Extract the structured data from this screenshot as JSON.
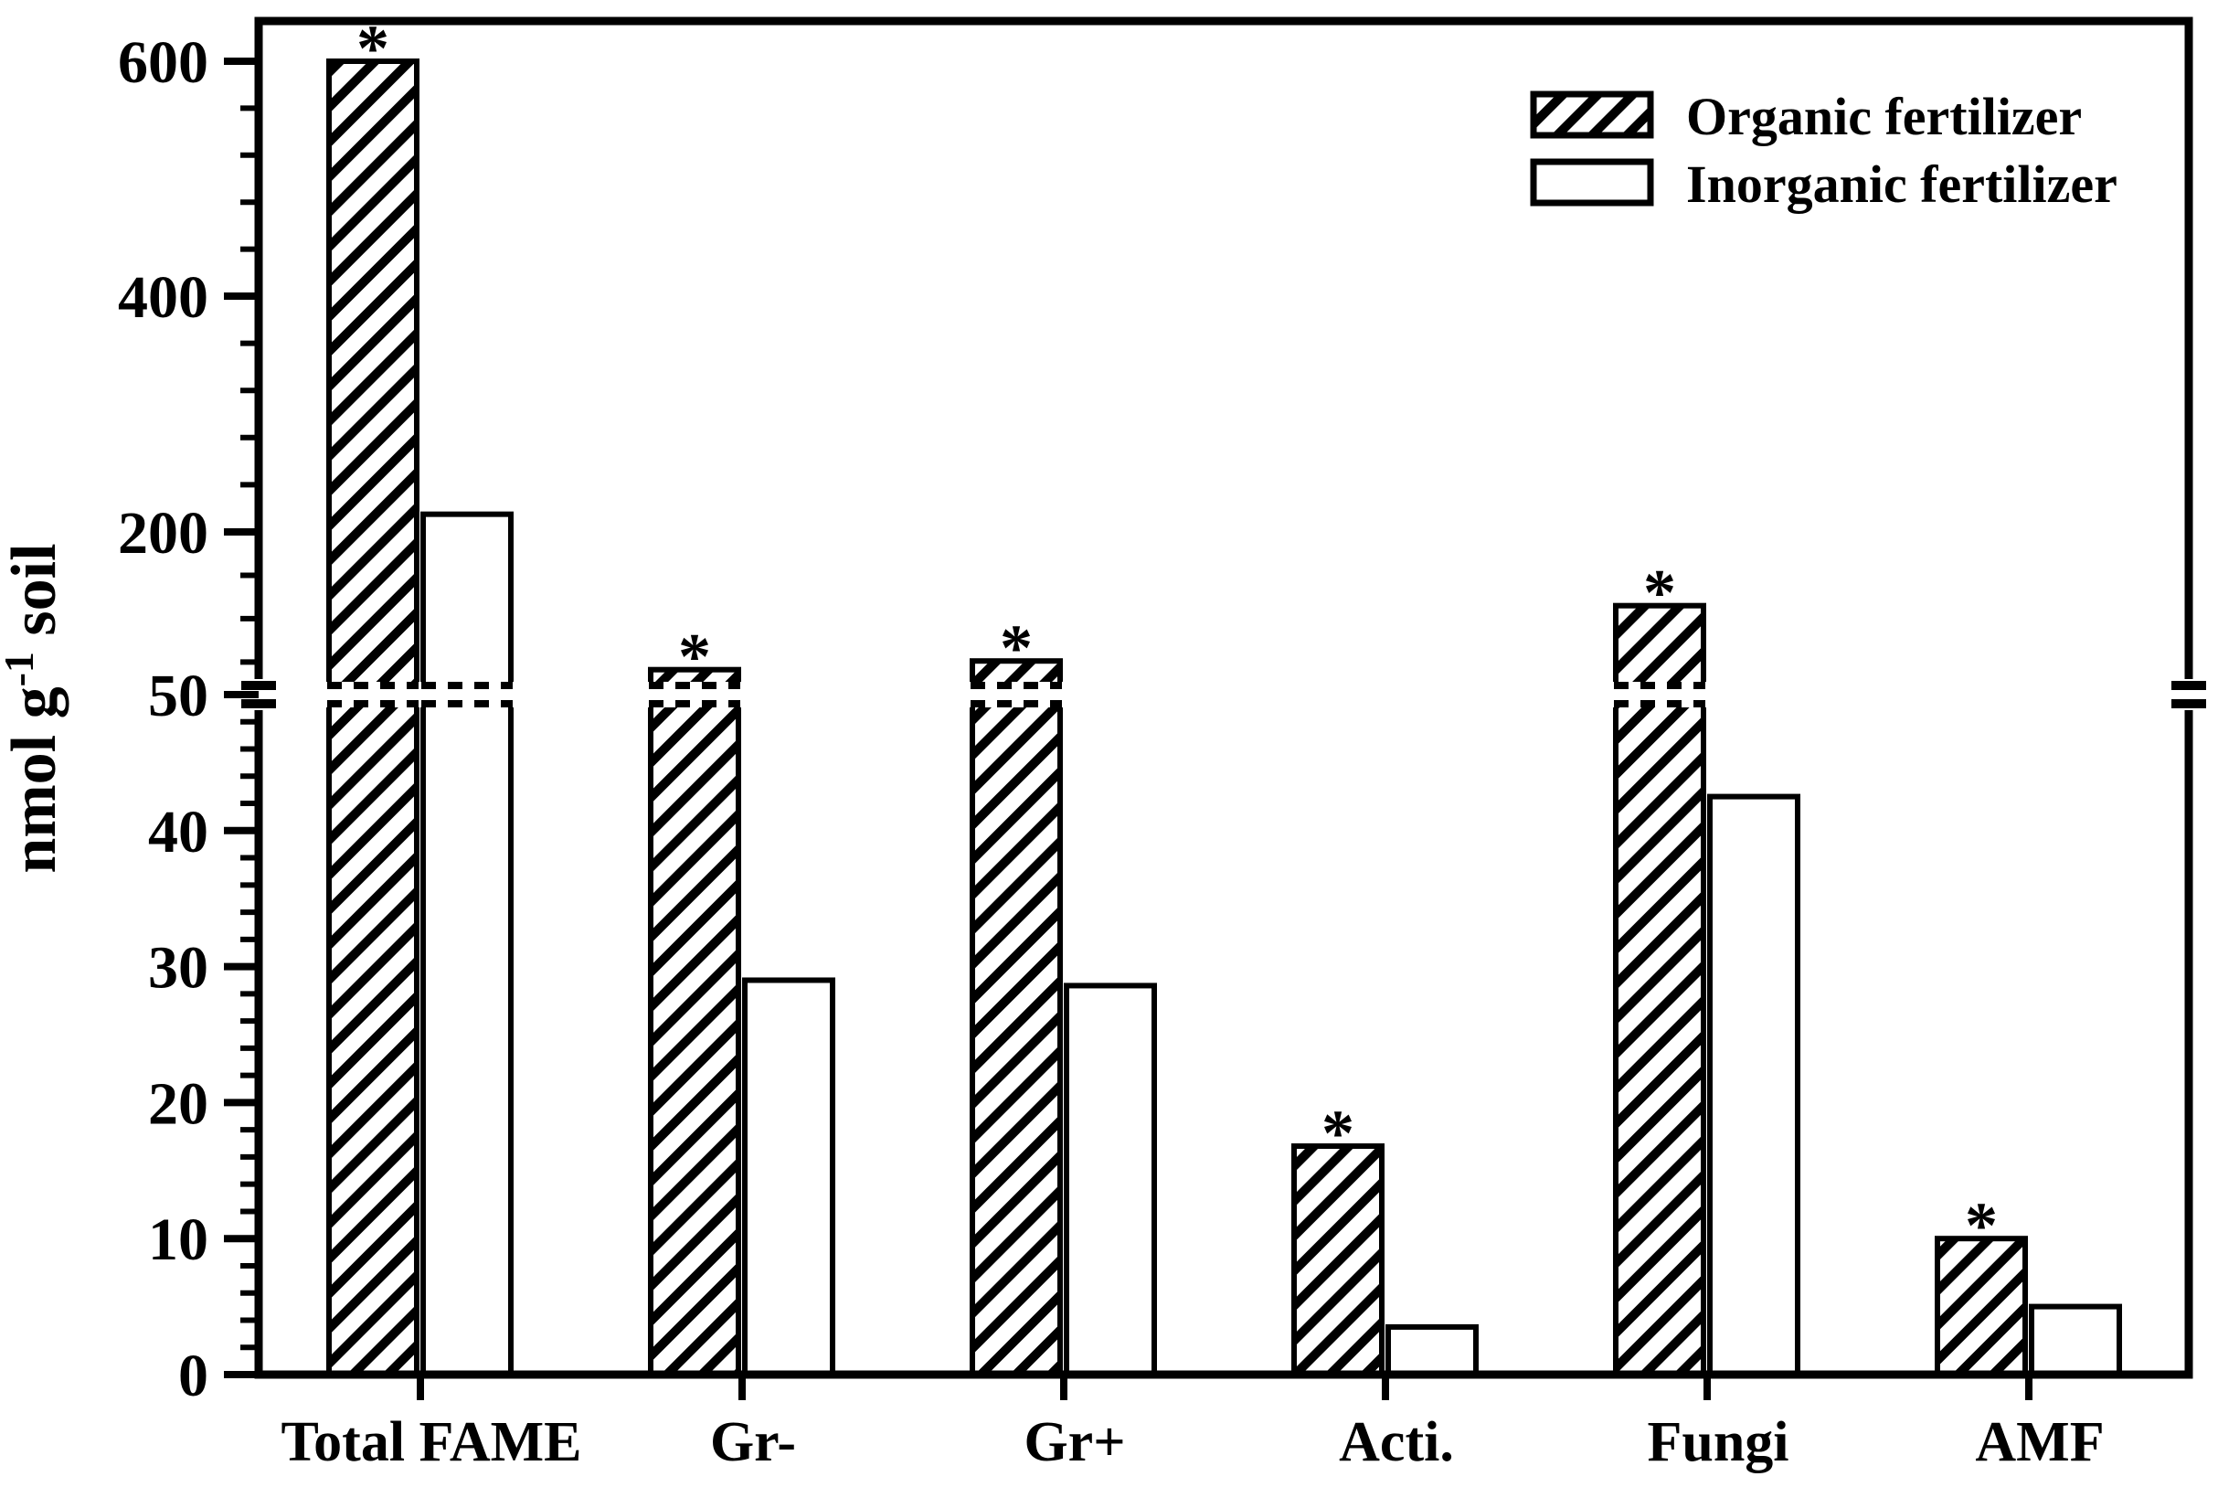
{
  "figure": {
    "background": "#ffffff",
    "ink": "#000000"
  },
  "chart_data": {
    "type": "bar",
    "title": "",
    "xlabel": "",
    "ylabel": {
      "prefix": "nmol g",
      "superscript": "-1",
      "suffix": " soil"
    },
    "categories": [
      "Total FAME",
      "Gr-",
      "Gr+",
      "Acti.",
      "Fungi",
      "AMF"
    ],
    "series": [
      {
        "name": "Organic fertilizer",
        "style": "hatched",
        "values": [
          600,
          73,
          81,
          16.8,
          132,
          10
        ]
      },
      {
        "name": "Inorganic fertilizer",
        "style": "open",
        "values": [
          215,
          29,
          28.6,
          3.5,
          42.5,
          5
        ]
      }
    ],
    "significance": {
      "marker": "*",
      "series": "Organic fertilizer",
      "flags": [
        true,
        true,
        true,
        true,
        true,
        true
      ]
    },
    "y_axis": {
      "break_value": 50,
      "lower_range": [
        0,
        50
      ],
      "upper_range": [
        50,
        630
      ],
      "lower_major_ticks": [
        0,
        10,
        20,
        30,
        40,
        50
      ],
      "lower_minor_step": 2,
      "upper_major_ticks": [
        200,
        400,
        600
      ],
      "upper_minor_ticks": [
        80,
        120,
        160,
        240,
        280,
        320,
        360,
        440,
        480,
        520,
        560
      ]
    },
    "legend": {
      "position": "top-right",
      "entries": [
        {
          "label": "Organic fertilizer",
          "style": "hatched"
        },
        {
          "label": "Inorganic fertilizer",
          "style": "open"
        }
      ]
    },
    "grid": false
  }
}
